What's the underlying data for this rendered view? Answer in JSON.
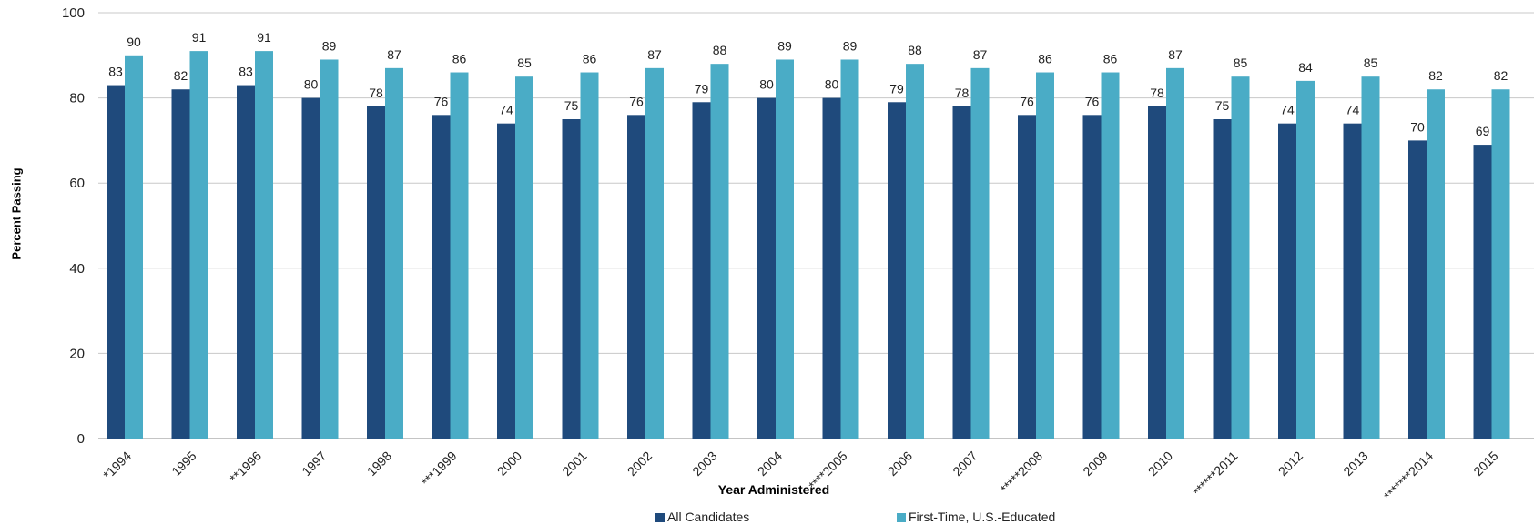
{
  "chart_data": {
    "type": "bar",
    "xlabel": "Year Administered",
    "ylabel": "Percent Passing",
    "ylim": [
      0,
      100
    ],
    "yticks": [
      0,
      20,
      40,
      60,
      80,
      100
    ],
    "grid": true,
    "legend_position": "bottom",
    "categories": [
      "*1994",
      "1995",
      "**1996",
      "1997",
      "1998",
      "***1999",
      "2000",
      "2001",
      "2002",
      "2003",
      "2004",
      "****2005",
      "2006",
      "2007",
      "*****2008",
      "2009",
      "2010",
      "******2011",
      "2012",
      "2013",
      "*******2014",
      "2015"
    ],
    "series": [
      {
        "name": "All Candidates",
        "color": "#1f4a7c",
        "values": [
          83,
          82,
          83,
          80,
          78,
          76,
          74,
          75,
          76,
          79,
          80,
          80,
          79,
          78,
          76,
          76,
          78,
          75,
          74,
          74,
          70,
          69
        ]
      },
      {
        "name": "First-Time, U.S.-Educated",
        "color": "#4aacc6",
        "values": [
          90,
          91,
          91,
          89,
          87,
          86,
          85,
          86,
          87,
          88,
          89,
          89,
          88,
          87,
          86,
          86,
          87,
          85,
          84,
          85,
          82,
          82
        ]
      }
    ]
  }
}
